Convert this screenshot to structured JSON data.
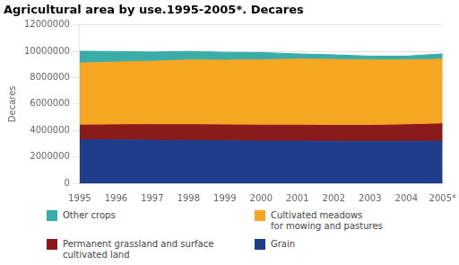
{
  "chart_data": {
    "type": "area",
    "title": "Agricultural area by use.1995-2005*. Decares",
    "ylabel": "Decares",
    "categories": [
      "1995",
      "1996",
      "1997",
      "1998",
      "1999",
      "2000",
      "2001",
      "2002",
      "2003",
      "2004",
      "2005*"
    ],
    "series": [
      {
        "name": "Grain",
        "color": "#1f3d8a",
        "values": [
          3300000,
          3280000,
          3260000,
          3240000,
          3220000,
          3200000,
          3200000,
          3180000,
          3180000,
          3180000,
          3200000
        ]
      },
      {
        "name": "Permanent grassland and surface\ncultivated land",
        "color": "#8b1a1a",
        "values": [
          1100000,
          1150000,
          1180000,
          1200000,
          1200000,
          1200000,
          1200000,
          1200000,
          1200000,
          1250000,
          1300000
        ]
      },
      {
        "name": "Cultivated meadows\nfor mowing and pastures",
        "color": "#f5a623",
        "values": [
          4700000,
          4750000,
          4800000,
          4900000,
          4900000,
          4950000,
          5000000,
          5000000,
          4950000,
          4900000,
          4900000
        ]
      },
      {
        "name": "Other crops",
        "color": "#3aada8",
        "values": [
          900000,
          800000,
          700000,
          650000,
          600000,
          550000,
          400000,
          350000,
          300000,
          300000,
          400000
        ]
      }
    ],
    "ylim": [
      0,
      12000000
    ],
    "yticks": [
      0,
      2000000,
      4000000,
      6000000,
      8000000,
      10000000,
      12000000
    ],
    "stacked": true,
    "grid": true,
    "legend": "bottom"
  }
}
